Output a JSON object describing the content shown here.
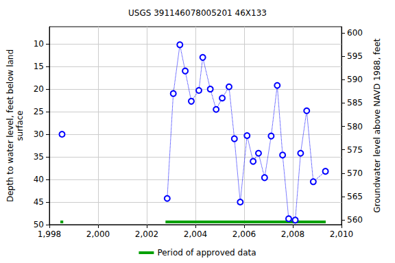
{
  "chart_data": {
    "type": "line",
    "title": "USGS 391146078005201 46X133",
    "y_label": "Depth to water level, feet below land\nsurface",
    "y2_label": "Groundwater level above NAVD 1988, feet",
    "x": [
      1998.52,
      null,
      2002.84,
      2003.09,
      2003.36,
      2003.58,
      2003.83,
      2004.14,
      2004.3,
      2004.61,
      2004.85,
      2005.1,
      2005.38,
      2005.6,
      2005.84,
      2006.12,
      2006.37,
      2006.59,
      2006.84,
      2007.11,
      2007.36,
      2007.58,
      2007.83,
      2008.1,
      2008.32,
      2008.57,
      2008.84,
      2009.34
    ],
    "series": [
      {
        "color": "#0000ff",
        "marker": "circle",
        "line_style": "dotted",
        "values": [
          30,
          null,
          44.2,
          21,
          10.2,
          16,
          22.7,
          20.3,
          13,
          20,
          24.5,
          22,
          19.5,
          31,
          45,
          30.3,
          36,
          34.2,
          39.6,
          30.4,
          19.2,
          34.6,
          48.7,
          49,
          34.2,
          24.8,
          40.5,
          38.2
        ]
      }
    ],
    "approved_periods": {
      "name": "Period of approved data",
      "color": "#00a000",
      "ranges": [
        [
          1998.45,
          1998.57
        ],
        [
          2002.77,
          2009.35
        ]
      ]
    },
    "xlim": [
      1998,
      2010
    ],
    "xticks": [
      1998,
      2000,
      2002,
      2004,
      2006,
      2008,
      2010
    ],
    "ylim": [
      50,
      6.2
    ],
    "yticks": [
      10,
      15,
      20,
      25,
      30,
      35,
      40,
      45,
      50
    ],
    "y2lim": [
      559,
      601.3
    ],
    "y2ticks": [
      560,
      565,
      570,
      575,
      580,
      585,
      590,
      595,
      600
    ],
    "grid": true,
    "legend": "bottom"
  }
}
